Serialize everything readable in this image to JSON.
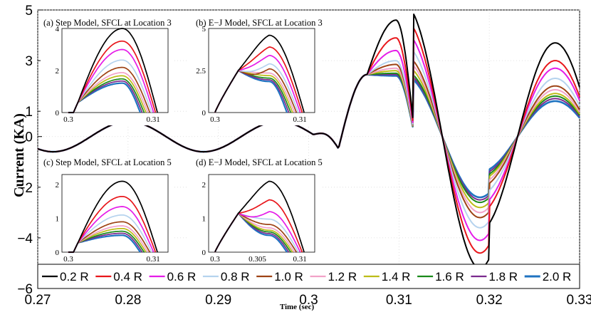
{
  "chart_data": {
    "type": "line",
    "main": {
      "xlabel": "Time (sec)",
      "ylabel": "Current (KA)",
      "xlim": [
        0.27,
        0.33
      ],
      "ylim": [
        -6,
        5
      ],
      "xticks": [
        "0.27",
        "0.28",
        "0.29",
        "0.3",
        "0.31",
        "0.32",
        "0.33"
      ],
      "yticks": [
        "5",
        "3",
        "1",
        "0",
        "−2",
        "−4",
        "−6"
      ],
      "fault_start": 0.3033,
      "pre_fault_peak_ka": 0.6,
      "post_fault_peaks_ka": {
        "series_values": [
          4.6,
          3.9,
          3.4,
          3.0,
          2.85,
          2.7,
          2.6,
          2.5,
          2.45,
          2.4
        ],
        "second_trough": [
          -5.2,
          -4.6,
          -4.1,
          -3.6,
          -3.2,
          -3.0,
          -2.8,
          -2.6,
          -2.5,
          -2.4
        ],
        "third_peak": [
          3.7,
          3.0,
          2.7,
          2.3,
          2.0,
          1.85,
          1.7,
          1.6,
          1.5,
          1.4
        ]
      }
    },
    "insets": [
      {
        "title": "(a) Step Model, SFCL at Location 3",
        "xticks": [
          "0.3",
          "0.31"
        ],
        "yticks": [
          "4",
          "2",
          "0"
        ],
        "ylim": [
          0,
          4
        ],
        "peaks": [
          4.0,
          3.4,
          3.0,
          2.5,
          2.15,
          1.9,
          1.75,
          1.6,
          1.5,
          1.4
        ],
        "style": "step"
      },
      {
        "title": "(b) E−J Model, SFCL at Location 3",
        "xticks": [
          "0.3",
          "0.31"
        ],
        "yticks": [
          "5",
          "2.5",
          "0"
        ],
        "ylim": [
          0,
          5
        ],
        "peaks": [
          4.6,
          3.9,
          3.4,
          2.9,
          2.6,
          2.35,
          2.2,
          2.05,
          1.95,
          1.85
        ],
        "style": "ej"
      },
      {
        "title": "(c) Step Model, SFCL at Location 5",
        "xticks": [
          "0.3",
          "0.31"
        ],
        "yticks": [
          "2",
          "1",
          "0"
        ],
        "ylim": [
          0,
          2.3
        ],
        "peaks": [
          2.1,
          1.65,
          1.35,
          1.1,
          0.9,
          0.78,
          0.7,
          0.62,
          0.56,
          0.5
        ],
        "style": "step"
      },
      {
        "title": "(d) E−J Model, SFCL at Location 5",
        "xticks": [
          "0.3",
          "0.305",
          "0.31"
        ],
        "yticks": [
          "2",
          "1",
          "0"
        ],
        "ylim": [
          0,
          2.3
        ],
        "peaks": [
          2.1,
          1.55,
          1.2,
          0.98,
          0.82,
          0.72,
          0.65,
          0.6,
          0.55,
          0.5
        ],
        "style": "ej"
      }
    ],
    "series": [
      {
        "name": "0.2 R",
        "color": "#000000"
      },
      {
        "name": "0.4 R",
        "color": "#e8161b"
      },
      {
        "name": "0.6 R",
        "color": "#e51ce8"
      },
      {
        "name": "0.8 R",
        "color": "#b5d3ee"
      },
      {
        "name": "1.0 R",
        "color": "#9e4315"
      },
      {
        "name": "1.2 R",
        "color": "#f2a2c8"
      },
      {
        "name": "1.4 R",
        "color": "#bcbc18"
      },
      {
        "name": "1.6 R",
        "color": "#1a8a1a"
      },
      {
        "name": "1.8 R",
        "color": "#7b2a8e"
      },
      {
        "name": "2.0 R",
        "color": "#1f73c1"
      }
    ],
    "legend_position": "bottom"
  }
}
